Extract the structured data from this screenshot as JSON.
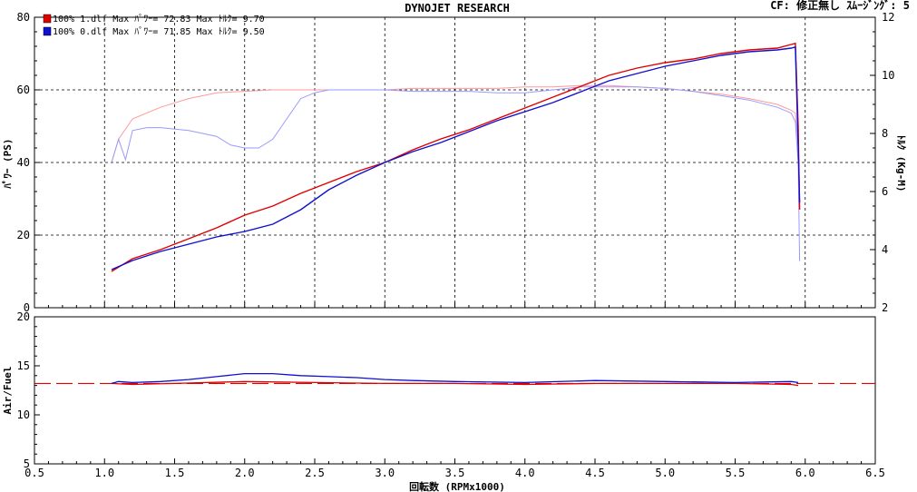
{
  "header": {
    "title": "DYNOJET  RESEARCH",
    "cf_info": "CF: 修正無し  ｽﾑｰｼﾞﾝｸﾞ: 5"
  },
  "legend": {
    "run1": "100% 1.dlf Max ﾊﾟﾜｰ= 72.83      Max ﾄﾙｸ= 9.70",
    "run2": "100% 0.dlf Max ﾊﾟﾜｰ= 71.85      Max ﾄﾙｸ= 9.50"
  },
  "colors": {
    "run1": "#e00000",
    "run1_torque": "#ff9a9a",
    "run2": "#1010d0",
    "run2_torque": "#9a9aff",
    "target_af": "#e00000",
    "grid": "#000000"
  },
  "chart_data": [
    {
      "type": "line",
      "name": "power-torque",
      "xlabel": "回転数 (RPMx1000)",
      "ylabel": "ﾊﾟﾜｰ (PS)",
      "y2label": "ﾄﾙｸ (Kg-M)",
      "xlim": [
        0.5,
        6.5
      ],
      "ylim": [
        0,
        80
      ],
      "y2lim": [
        2,
        12
      ],
      "x_ticks": [
        "0.5",
        "1.0",
        "1.5",
        "2.0",
        "2.5",
        "3.0",
        "3.5",
        "4.0",
        "4.5",
        "5.0",
        "5.5",
        "6.0",
        "6.5"
      ],
      "y_ticks": [
        "0",
        "20",
        "40",
        "60",
        "80"
      ],
      "y2_ticks": [
        "2",
        "4",
        "6",
        "8",
        "10",
        "12"
      ],
      "grid": true,
      "series": [
        {
          "name": "100% 1.dlf",
          "measure": "power",
          "axis": "left",
          "color": "#e00000",
          "x": [
            1.05,
            1.2,
            1.4,
            1.6,
            1.8,
            2.0,
            2.2,
            2.4,
            2.6,
            2.8,
            3.0,
            3.2,
            3.4,
            3.6,
            3.8,
            4.0,
            4.2,
            4.4,
            4.6,
            4.8,
            5.0,
            5.2,
            5.4,
            5.6,
            5.8,
            5.9,
            5.93,
            5.95,
            5.96
          ],
          "y": [
            10,
            13.5,
            16,
            19,
            22,
            25.5,
            28,
            31.5,
            34.5,
            37.5,
            40,
            43.5,
            46.5,
            49,
            52,
            55,
            58,
            61,
            64,
            66,
            67.5,
            68.5,
            70,
            71,
            71.5,
            72.5,
            72.8,
            50,
            27
          ]
        },
        {
          "name": "100% 0.dlf",
          "measure": "power",
          "axis": "left",
          "color": "#1010d0",
          "x": [
            1.05,
            1.2,
            1.4,
            1.6,
            1.8,
            2.0,
            2.2,
            2.4,
            2.6,
            2.8,
            3.0,
            3.2,
            3.4,
            3.6,
            3.8,
            4.0,
            4.2,
            4.4,
            4.6,
            4.8,
            5.0,
            5.2,
            5.4,
            5.6,
            5.8,
            5.9,
            5.93,
            5.95,
            5.96
          ],
          "y": [
            10.5,
            13,
            15.5,
            17.5,
            19.5,
            21,
            23,
            27,
            32.5,
            36.5,
            40,
            43,
            45.5,
            48.5,
            51.5,
            54,
            56.5,
            59.5,
            62.5,
            64.5,
            66.5,
            68,
            69.5,
            70.5,
            71,
            71.5,
            71.8,
            45,
            29
          ]
        },
        {
          "name": "100% 1.dlf",
          "measure": "torque",
          "axis": "right",
          "color": "#ff9a9a",
          "x": [
            1.05,
            1.1,
            1.2,
            1.4,
            1.6,
            1.8,
            2.0,
            2.2,
            2.4,
            2.6,
            2.8,
            3.0,
            3.2,
            3.4,
            3.6,
            3.8,
            4.0,
            4.2,
            4.4,
            4.6,
            4.8,
            5.0,
            5.2,
            5.4,
            5.6,
            5.8,
            5.9,
            5.93,
            5.95,
            5.96
          ],
          "y": [
            7,
            7.8,
            8.5,
            8.9,
            9.2,
            9.4,
            9.45,
            9.5,
            9.5,
            9.5,
            9.5,
            9.5,
            9.55,
            9.55,
            9.55,
            9.55,
            9.6,
            9.6,
            9.65,
            9.65,
            9.6,
            9.55,
            9.45,
            9.35,
            9.2,
            9.0,
            8.8,
            8.7,
            7.5,
            5.4
          ]
        },
        {
          "name": "100% 0.dlf",
          "measure": "torque",
          "axis": "right",
          "color": "#9a9aff",
          "x": [
            1.05,
            1.1,
            1.15,
            1.2,
            1.3,
            1.4,
            1.6,
            1.8,
            1.9,
            2.0,
            2.1,
            2.2,
            2.3,
            2.4,
            2.5,
            2.6,
            2.8,
            3.0,
            3.2,
            3.4,
            3.6,
            3.8,
            4.0,
            4.2,
            4.4,
            4.6,
            4.8,
            5.0,
            5.2,
            5.4,
            5.6,
            5.8,
            5.9,
            5.93,
            5.95,
            5.96
          ],
          "y": [
            7,
            7.8,
            7.1,
            8.1,
            8.2,
            8.2,
            8.1,
            7.9,
            7.6,
            7.5,
            7.5,
            7.8,
            8.5,
            9.2,
            9.4,
            9.5,
            9.5,
            9.5,
            9.45,
            9.45,
            9.45,
            9.4,
            9.4,
            9.5,
            9.6,
            9.6,
            9.6,
            9.55,
            9.45,
            9.3,
            9.15,
            8.9,
            8.7,
            8.4,
            7,
            3.6
          ]
        }
      ]
    },
    {
      "type": "line",
      "name": "air-fuel",
      "xlabel": "回転数 (RPMx1000)",
      "ylabel": "Air/Fuel",
      "xlim": [
        0.5,
        6.5
      ],
      "ylim": [
        5,
        20
      ],
      "y_ticks": [
        "5",
        "10",
        "15",
        "20"
      ],
      "grid": false,
      "target_af": 13.2,
      "series": [
        {
          "name": "100% 1.dlf",
          "color": "#e00000",
          "x": [
            1.05,
            1.2,
            1.5,
            2.0,
            2.5,
            3.0,
            3.5,
            4.0,
            4.5,
            5.0,
            5.5,
            5.9,
            5.95
          ],
          "y": [
            13.2,
            13.1,
            13.2,
            13.4,
            13.3,
            13.2,
            13.2,
            13.1,
            13.2,
            13.2,
            13.2,
            13.1,
            13.0
          ]
        },
        {
          "name": "100% 0.dlf",
          "color": "#1010d0",
          "x": [
            1.05,
            1.1,
            1.2,
            1.4,
            1.6,
            1.8,
            2.0,
            2.2,
            2.4,
            2.6,
            2.8,
            3.0,
            3.2,
            3.5,
            4.0,
            4.5,
            5.0,
            5.5,
            5.9,
            5.95
          ],
          "y": [
            13.2,
            13.4,
            13.3,
            13.4,
            13.6,
            13.9,
            14.2,
            14.2,
            14.0,
            13.9,
            13.8,
            13.6,
            13.5,
            13.4,
            13.3,
            13.5,
            13.4,
            13.3,
            13.4,
            13.3
          ]
        }
      ]
    }
  ]
}
